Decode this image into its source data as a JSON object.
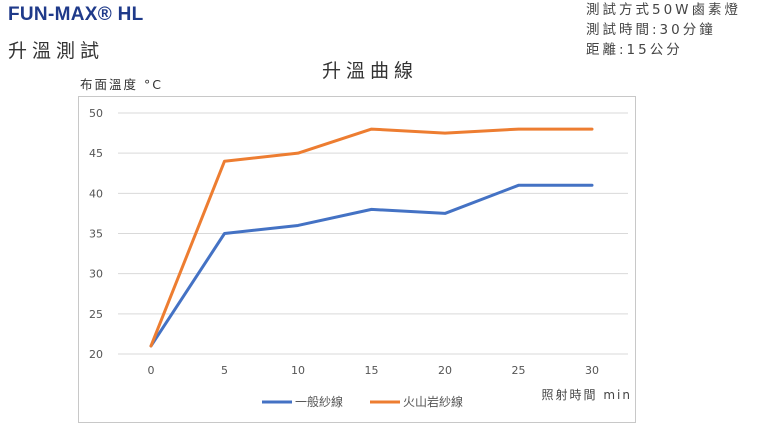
{
  "header": {
    "brand": "FUN-MAX® HL",
    "subtitle": "升溫測試"
  },
  "test_info": [
    "測試方式50W鹵素燈",
    "測試時間:30分鐘",
    "距離:15公分"
  ],
  "chart_data": {
    "type": "line",
    "title": "升溫曲線",
    "ylabel": "布面溫度 °C",
    "xlabel": "照射時間 min",
    "x": [
      0,
      5,
      10,
      15,
      20,
      25,
      30
    ],
    "ylim": [
      20,
      50
    ],
    "yticks": [
      20,
      25,
      30,
      35,
      40,
      45,
      50
    ],
    "grid": true,
    "legend_position": "bottom",
    "series": [
      {
        "name": "一般紗線",
        "color": "#4472c4",
        "values": [
          21,
          35,
          36,
          38,
          37.5,
          41,
          41
        ]
      },
      {
        "name": "火山岩紗線",
        "color": "#ed7d31",
        "values": [
          21,
          44,
          45,
          48,
          47.5,
          48,
          48
        ]
      }
    ]
  }
}
